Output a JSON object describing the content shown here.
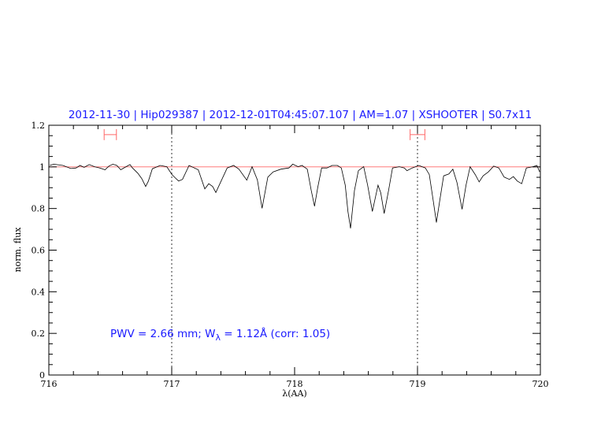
{
  "chart_data": {
    "type": "line",
    "title": "2012-11-30 | Hip029387 | 2012-12-01T04:45:07.107 | AM=1.07 | XSHOOTER | S0.7x11",
    "xlabel": "λ(AA)",
    "ylabel": "norm. flux",
    "xlim": [
      716,
      720
    ],
    "ylim": [
      0,
      1.2
    ],
    "xticks": [
      716,
      717,
      718,
      719,
      720
    ],
    "xtick_labels": [
      "716",
      "717",
      "718",
      "719",
      "720"
    ],
    "yticks": [
      0,
      0.2,
      0.4,
      0.6,
      0.8,
      1,
      1.2
    ],
    "ytick_labels": [
      "0",
      "0.2",
      "0.4",
      "0.6",
      "0.8",
      "1",
      "1.2"
    ],
    "grid": false,
    "reference_line_y": 1,
    "vertical_markers": [
      717,
      719
    ],
    "range_markers": [
      {
        "x": [
          716.45,
          716.55
        ],
        "y": 1.155
      },
      {
        "x": [
          718.94,
          719.06
        ],
        "y": 1.155
      }
    ],
    "annotation": {
      "prefix": "PWV = 2.66 mm; W",
      "subscript": "λ",
      "suffix": " = 1.12Å (corr: 1.05)"
    },
    "colors": {
      "spectrum": "#000000",
      "reference_line": "#ff6666",
      "text": "#1a1aff",
      "range_markers": "#ff6666"
    },
    "series": [
      {
        "x": [
          716.008,
          716.04,
          716.115,
          716.179,
          716.222,
          716.254,
          716.287,
          716.329,
          716.372,
          716.415,
          716.457,
          716.489,
          716.521,
          716.553,
          716.585,
          716.628,
          716.66,
          716.681,
          716.724,
          716.756,
          716.788,
          716.81,
          716.842,
          716.906,
          716.96,
          717.002,
          717.034,
          717.056,
          717.088,
          717.141,
          717.216,
          717.269,
          717.301,
          717.333,
          717.359,
          717.397,
          717.451,
          717.504,
          717.547,
          717.611,
          717.654,
          717.697,
          717.735,
          717.782,
          717.825,
          717.889,
          717.953,
          717.985,
          718.028,
          718.06,
          718.103,
          718.135,
          718.162,
          718.188,
          718.22,
          718.263,
          718.306,
          718.348,
          718.38,
          718.412,
          718.434,
          718.455,
          718.487,
          718.519,
          718.562,
          718.594,
          718.633,
          718.679,
          718.701,
          718.729,
          718.765,
          718.797,
          718.851,
          718.893,
          718.915,
          718.957,
          719.011,
          719.064,
          719.096,
          719.128,
          719.154,
          719.181,
          719.213,
          719.256,
          719.288,
          719.321,
          719.363,
          719.395,
          719.428,
          719.47,
          719.502,
          719.534,
          719.577,
          719.62,
          719.662,
          719.705,
          719.748,
          719.78,
          719.812,
          719.848,
          719.886,
          719.94,
          719.972,
          719.994
        ],
        "y": [
          1.007,
          1.013,
          1.007,
          0.992,
          0.995,
          1.007,
          0.998,
          1.011,
          1.001,
          0.995,
          0.986,
          1.004,
          1.013,
          1.007,
          0.986,
          1.001,
          1.011,
          0.995,
          0.97,
          0.944,
          0.906,
          0.932,
          0.991,
          1.007,
          1.001,
          0.963,
          0.944,
          0.932,
          0.94,
          1.007,
          0.986,
          0.894,
          0.919,
          0.906,
          0.877,
          0.925,
          0.995,
          1.007,
          0.989,
          0.936,
          1.001,
          0.938,
          0.801,
          0.951,
          0.976,
          0.989,
          0.995,
          1.013,
          1.001,
          1.007,
          0.989,
          0.887,
          0.811,
          0.9,
          0.995,
          0.995,
          1.007,
          1.007,
          0.995,
          0.912,
          0.786,
          0.705,
          0.887,
          0.982,
          1.001,
          0.912,
          0.786,
          0.912,
          0.875,
          0.776,
          0.887,
          0.995,
          1.001,
          0.995,
          0.982,
          0.995,
          1.007,
          0.995,
          0.963,
          0.837,
          0.733,
          0.837,
          0.957,
          0.966,
          0.989,
          0.925,
          0.796,
          0.912,
          1.001,
          0.963,
          0.928,
          0.957,
          0.976,
          1.004,
          0.995,
          0.951,
          0.94,
          0.953,
          0.932,
          0.919,
          0.995,
          1.001,
          1.007,
          0.976
        ]
      }
    ]
  }
}
